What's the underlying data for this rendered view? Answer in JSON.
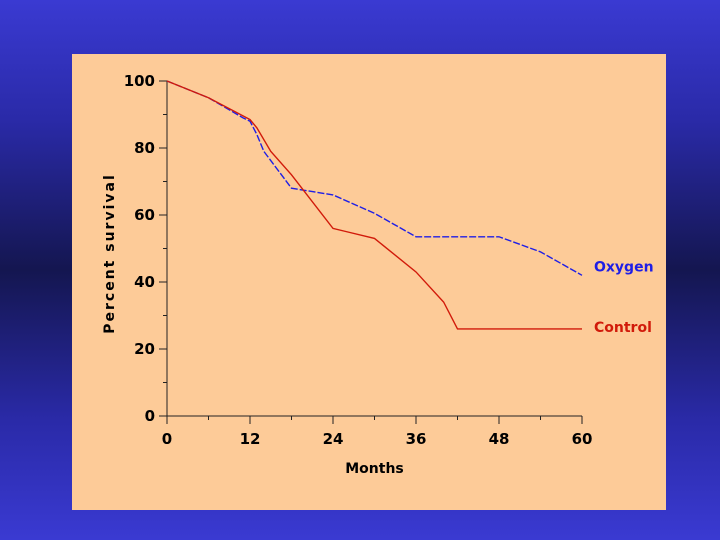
{
  "chart_data": {
    "type": "line",
    "title": "",
    "xlabel": "Months",
    "ylabel": "Percent survival",
    "xlim": [
      0,
      60
    ],
    "ylim": [
      0,
      100
    ],
    "xticks": [
      0,
      12,
      24,
      36,
      48,
      60
    ],
    "xtick_labels": [
      "0",
      "12",
      "24",
      "36",
      "48",
      "60"
    ],
    "yticks": [
      0,
      20,
      40,
      60,
      80,
      100
    ],
    "ytick_labels": [
      "0",
      "20",
      "40",
      "60",
      "80",
      "100"
    ],
    "grid": false,
    "series": [
      {
        "name": "Oxygen",
        "color": "#1e1ee6",
        "style": "dashed",
        "x": [
          0,
          6,
          11,
          12,
          13,
          14,
          18,
          24,
          30,
          36,
          42,
          48,
          54,
          60
        ],
        "y": [
          100,
          95,
          89,
          88,
          84,
          79,
          68,
          66,
          60.5,
          53.5,
          53.5,
          53.5,
          49,
          42
        ]
      },
      {
        "name": "Control",
        "color": "#d11a0a",
        "style": "solid",
        "x": [
          0,
          6,
          12,
          13,
          15,
          18,
          24,
          26,
          30,
          36,
          40,
          42,
          48,
          54,
          60
        ],
        "y": [
          100,
          95,
          88.5,
          86,
          79,
          72,
          56,
          55,
          53,
          43,
          34,
          26,
          26,
          26,
          26
        ]
      }
    ],
    "legend_labels": [
      "Oxygen",
      "Control"
    ]
  }
}
